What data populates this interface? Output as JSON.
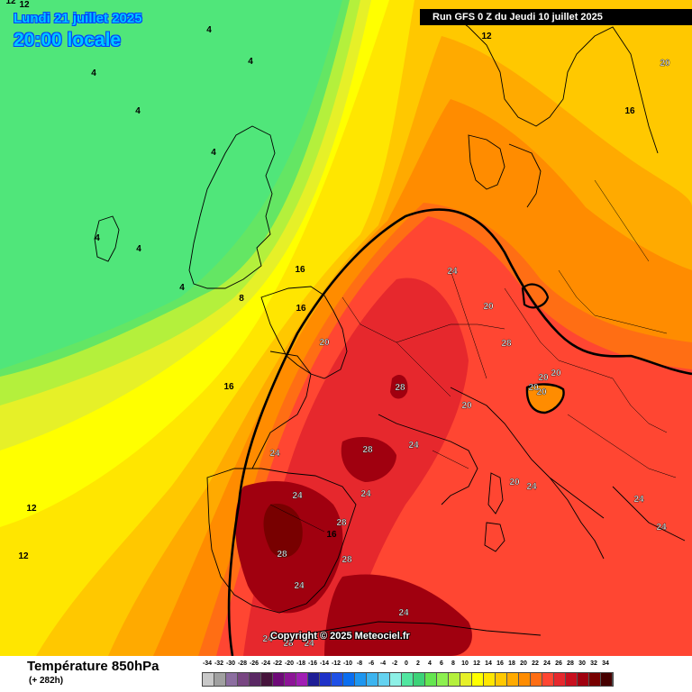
{
  "header": {
    "date_text": "Lundi 21 juillet 2025",
    "time_text": "20:00 locale",
    "run_text": "Run GFS 0 Z du Jeudi 10 juillet 2025"
  },
  "map": {
    "copyright": "Copyright © 2025 Meteociel.fr",
    "labels": [
      "4",
      "4",
      "4",
      "4",
      "4",
      "4",
      "4",
      "4",
      "8",
      "12",
      "16",
      "16",
      "16",
      "20",
      "16",
      "12",
      "12",
      "24",
      "20",
      "20",
      "28",
      "28",
      "24",
      "24",
      "24",
      "24",
      "28",
      "28",
      "24",
      "28",
      "24",
      "24",
      "28",
      "24",
      "28",
      "20",
      "20",
      "20",
      "20",
      "20",
      "20",
      "24",
      "24",
      "24",
      "16",
      "12",
      "12"
    ]
  },
  "footer": {
    "product_title": "Température 850hPa",
    "lead_time": "(+ 282h)"
  },
  "scale": {
    "labels": [
      "-34",
      "-32",
      "-30",
      "-28",
      "-26",
      "-24",
      "-22",
      "-20",
      "-18",
      "-16",
      "-14",
      "-12",
      "-10",
      "-8",
      "-6",
      "-4",
      "-2",
      "0",
      "2",
      "4",
      "6",
      "8",
      "10",
      "12",
      "14",
      "16",
      "18",
      "20",
      "22",
      "24",
      "26",
      "28",
      "30",
      "32",
      "34"
    ],
    "colors": [
      "#c8c8c8",
      "#a0a0a0",
      "#8c6ea0",
      "#784682",
      "#5a2864",
      "#46143c",
      "#6e0a78",
      "#8c1496",
      "#a01eb4",
      "#1e1e96",
      "#1e32c8",
      "#1e50e6",
      "#0a6ef0",
      "#1e96f0",
      "#3cb4f0",
      "#64d2f0",
      "#8cf0e6",
      "#50e6a0",
      "#3cd278",
      "#64e650",
      "#8cf050",
      "#b4f03c",
      "#e6f028",
      "#ffff00",
      "#ffe600",
      "#ffc800",
      "#ffaa00",
      "#ff8c00",
      "#ff6e14",
      "#ff4632",
      "#e6282d",
      "#c80f1e",
      "#a0000f",
      "#780000",
      "#460000"
    ]
  }
}
